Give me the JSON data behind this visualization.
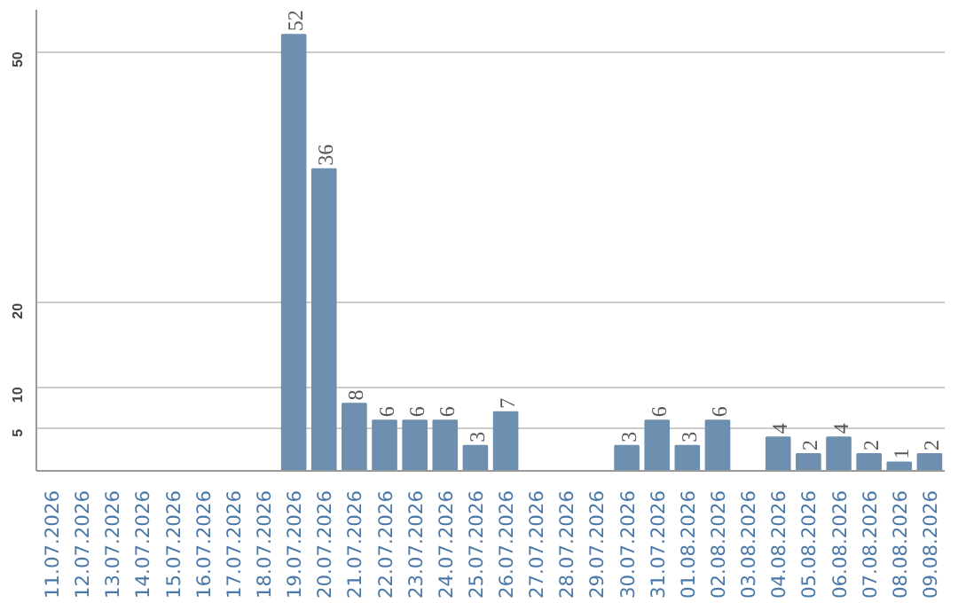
{
  "chart_data": {
    "type": "bar",
    "categories": [
      "11.07.2026",
      "12.07.2026",
      "13.07.2026",
      "14.07.2026",
      "15.07.2026",
      "16.07.2026",
      "17.07.2026",
      "18.07.2026",
      "19.07.2026",
      "20.07.2026",
      "21.07.2026",
      "22.07.2026",
      "23.07.2026",
      "24.07.2026",
      "25.07.2026",
      "26.07.2026",
      "27.07.2026",
      "28.07.2026",
      "29.07.2026",
      "30.07.2026",
      "31.07.2026",
      "01.08.2026",
      "02.08.2026",
      "03.08.2026",
      "04.08.2026",
      "05.08.2026",
      "06.08.2026",
      "07.08.2026",
      "08.08.2026",
      "09.08.2026"
    ],
    "values": [
      0,
      0,
      0,
      0,
      0,
      0,
      0,
      0,
      52,
      36,
      8,
      6,
      6,
      6,
      3,
      7,
      0,
      0,
      0,
      3,
      6,
      3,
      6,
      0,
      4,
      2,
      4,
      2,
      1,
      2
    ],
    "value_labels": [
      null,
      null,
      null,
      null,
      null,
      null,
      null,
      null,
      "52",
      "36",
      "8",
      "6",
      "6",
      "6",
      "3",
      "7",
      null,
      null,
      null,
      "3",
      "6",
      "3",
      "6",
      null,
      "4",
      "2",
      "4",
      "2",
      "1",
      "2"
    ],
    "color": "#6d8fb0",
    "ylim": [
      0,
      55
    ],
    "yticks": [
      5,
      10,
      20,
      50
    ],
    "grid": "y"
  }
}
